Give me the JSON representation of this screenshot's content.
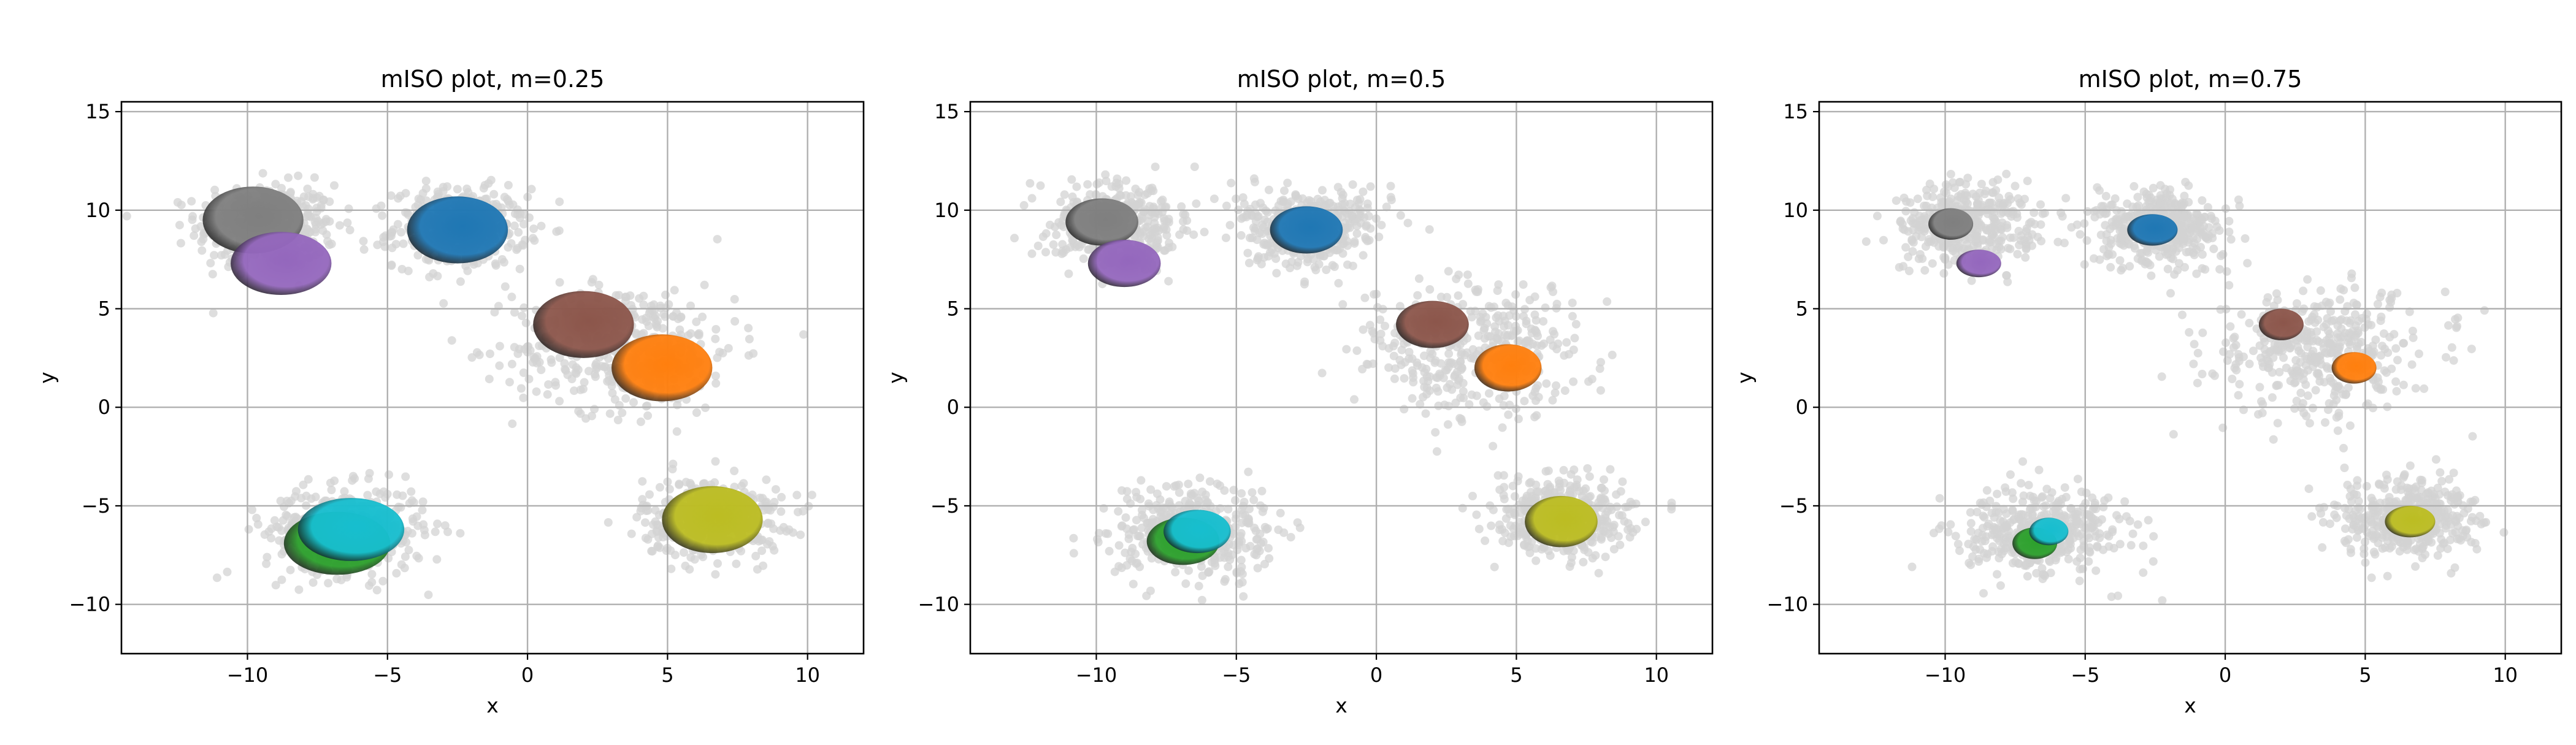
{
  "chart_data": [
    {
      "type": "scatter",
      "title": "mISO plot, m=0.25",
      "xlabel": "x",
      "ylabel": "y",
      "xlim": [
        -14.5,
        12
      ],
      "ylim": [
        -12.5,
        15.5
      ],
      "xticks": [
        -10,
        -5,
        0,
        5,
        10
      ],
      "yticks": [
        -10,
        -5,
        0,
        5,
        10,
        15
      ],
      "grid": true,
      "background_clusters": [
        {
          "cx": -9.3,
          "cy": 9.2,
          "sx": 2.0,
          "sy": 1.7
        },
        {
          "cx": -2.4,
          "cy": 9.1,
          "sx": 1.9,
          "sy": 1.6
        },
        {
          "cx": 3.5,
          "cy": 3.0,
          "sx": 3.2,
          "sy": 2.6
        },
        {
          "cx": -6.5,
          "cy": -6.3,
          "sx": 2.3,
          "sy": 1.8
        },
        {
          "cx": 6.6,
          "cy": -5.6,
          "sx": 2.0,
          "sy": 1.6
        }
      ],
      "regions": [
        {
          "color": "#7f7f7f",
          "cx": -9.8,
          "cy": 9.5,
          "rx": 1.8,
          "ry": 1.7
        },
        {
          "color": "#9467bd",
          "cx": -8.8,
          "cy": 7.3,
          "rx": 1.8,
          "ry": 1.6
        },
        {
          "color": "#1f77b4",
          "cx": -2.5,
          "cy": 9.0,
          "rx": 1.8,
          "ry": 1.7
        },
        {
          "color": "#8c564b",
          "cx": 2.0,
          "cy": 4.2,
          "rx": 1.8,
          "ry": 1.7
        },
        {
          "color": "#ff7f0e",
          "cx": 4.8,
          "cy": 2.0,
          "rx": 1.8,
          "ry": 1.7
        },
        {
          "color": "#2ca02c",
          "cx": -6.8,
          "cy": -6.9,
          "rx": 1.9,
          "ry": 1.6
        },
        {
          "color": "#17becf",
          "cx": -6.3,
          "cy": -6.2,
          "rx": 1.9,
          "ry": 1.6
        },
        {
          "color": "#bcbd22",
          "cx": 6.6,
          "cy": -5.7,
          "rx": 1.8,
          "ry": 1.7
        }
      ]
    },
    {
      "type": "scatter",
      "title": "mISO plot, m=0.5",
      "xlabel": "x",
      "ylabel": "y",
      "xlim": [
        -14.5,
        12
      ],
      "ylim": [
        -12.5,
        15.5
      ],
      "xticks": [
        -10,
        -5,
        0,
        5,
        10
      ],
      "yticks": [
        -10,
        -5,
        0,
        5,
        10,
        15
      ],
      "grid": true,
      "background_clusters": [
        {
          "cx": -9.3,
          "cy": 9.2,
          "sx": 2.0,
          "sy": 1.7
        },
        {
          "cx": -2.4,
          "cy": 9.1,
          "sx": 1.9,
          "sy": 1.6
        },
        {
          "cx": 3.5,
          "cy": 3.0,
          "sx": 3.2,
          "sy": 2.6
        },
        {
          "cx": -6.5,
          "cy": -6.3,
          "sx": 2.3,
          "sy": 1.8
        },
        {
          "cx": 6.6,
          "cy": -5.6,
          "sx": 2.0,
          "sy": 1.6
        }
      ],
      "regions": [
        {
          "color": "#7f7f7f",
          "cx": -9.8,
          "cy": 9.4,
          "rx": 1.3,
          "ry": 1.2
        },
        {
          "color": "#9467bd",
          "cx": -9.0,
          "cy": 7.3,
          "rx": 1.3,
          "ry": 1.2
        },
        {
          "color": "#1f77b4",
          "cx": -2.5,
          "cy": 9.0,
          "rx": 1.3,
          "ry": 1.2
        },
        {
          "color": "#8c564b",
          "cx": 2.0,
          "cy": 4.2,
          "rx": 1.3,
          "ry": 1.2
        },
        {
          "color": "#ff7f0e",
          "cx": 4.7,
          "cy": 2.0,
          "rx": 1.2,
          "ry": 1.2
        },
        {
          "color": "#2ca02c",
          "cx": -6.9,
          "cy": -6.8,
          "rx": 1.3,
          "ry": 1.2
        },
        {
          "color": "#17becf",
          "cx": -6.4,
          "cy": -6.3,
          "rx": 1.2,
          "ry": 1.1
        },
        {
          "color": "#bcbd22",
          "cx": 6.6,
          "cy": -5.8,
          "rx": 1.3,
          "ry": 1.3
        }
      ]
    },
    {
      "type": "scatter",
      "title": "mISO plot, m=0.75",
      "xlabel": "x",
      "ylabel": "y",
      "xlim": [
        -14.5,
        12
      ],
      "ylim": [
        -12.5,
        15.5
      ],
      "xticks": [
        -10,
        -5,
        0,
        5,
        10
      ],
      "yticks": [
        -10,
        -5,
        0,
        5,
        10,
        15
      ],
      "grid": true,
      "background_clusters": [
        {
          "cx": -9.3,
          "cy": 9.2,
          "sx": 2.0,
          "sy": 1.7
        },
        {
          "cx": -2.4,
          "cy": 9.1,
          "sx": 1.9,
          "sy": 1.6
        },
        {
          "cx": 3.5,
          "cy": 3.0,
          "sx": 3.2,
          "sy": 2.6
        },
        {
          "cx": -6.5,
          "cy": -6.3,
          "sx": 2.3,
          "sy": 1.8
        },
        {
          "cx": 6.6,
          "cy": -5.6,
          "sx": 2.0,
          "sy": 1.6
        }
      ],
      "regions": [
        {
          "color": "#7f7f7f",
          "cx": -9.8,
          "cy": 9.3,
          "rx": 0.8,
          "ry": 0.8
        },
        {
          "color": "#9467bd",
          "cx": -8.8,
          "cy": 7.3,
          "rx": 0.8,
          "ry": 0.7
        },
        {
          "color": "#1f77b4",
          "cx": -2.6,
          "cy": 9.0,
          "rx": 0.9,
          "ry": 0.8
        },
        {
          "color": "#8c564b",
          "cx": 2.0,
          "cy": 4.2,
          "rx": 0.8,
          "ry": 0.8
        },
        {
          "color": "#ff7f0e",
          "cx": 4.6,
          "cy": 2.0,
          "rx": 0.8,
          "ry": 0.8
        },
        {
          "color": "#2ca02c",
          "cx": -6.8,
          "cy": -6.9,
          "rx": 0.8,
          "ry": 0.8
        },
        {
          "color": "#17becf",
          "cx": -6.3,
          "cy": -6.3,
          "rx": 0.7,
          "ry": 0.7
        },
        {
          "color": "#bcbd22",
          "cx": 6.6,
          "cy": -5.8,
          "rx": 0.9,
          "ry": 0.8
        }
      ]
    }
  ]
}
